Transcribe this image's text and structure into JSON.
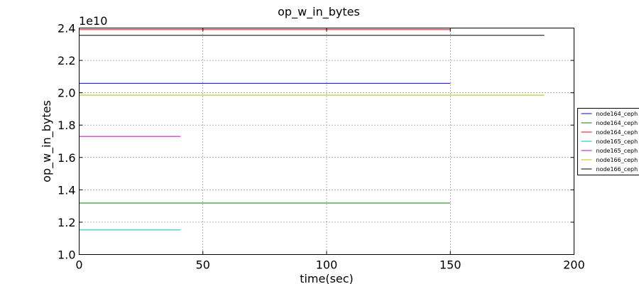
{
  "chart_data": {
    "type": "line",
    "title": "op_w_in_bytes",
    "xlabel": "time(sec)",
    "ylabel": "op_w_in_bytes",
    "y_multiplier_label": "1e10",
    "xlim": [
      0,
      200
    ],
    "ylim": [
      1.0,
      2.4
    ],
    "xticks": [
      0,
      50,
      100,
      150,
      200
    ],
    "yticks": [
      1.0,
      1.2,
      1.4,
      1.6,
      1.8,
      2.0,
      2.2,
      2.4
    ],
    "xtick_labels": [
      "0",
      "50",
      "100",
      "150",
      "200"
    ],
    "ytick_labels": [
      "1.0",
      "1.2",
      "1.4",
      "1.6",
      "1.8",
      "2.0",
      "2.2",
      "2.4"
    ],
    "grid": true,
    "legend_position": "right",
    "series": [
      {
        "name": "node164_ceph",
        "color": "#0000ff",
        "x": [
          0,
          150
        ],
        "y": [
          2.058,
          2.058
        ]
      },
      {
        "name": "node164_ceph",
        "color": "#008000",
        "x": [
          0,
          150
        ],
        "y": [
          1.318,
          1.318
        ]
      },
      {
        "name": "node164_ceph",
        "color": "#ff0000",
        "x": [
          0,
          150
        ],
        "y": [
          2.39,
          2.39
        ]
      },
      {
        "name": "node165_ceph",
        "color": "#00bfbf",
        "x": [
          0,
          41
        ],
        "y": [
          1.152,
          1.152
        ]
      },
      {
        "name": "node165_ceph",
        "color": "#bf00bf",
        "x": [
          0,
          41
        ],
        "y": [
          1.73,
          1.73
        ]
      },
      {
        "name": "node166_ceph",
        "color": "#bfbf00",
        "x": [
          0,
          188
        ],
        "y": [
          1.985,
          1.985
        ]
      },
      {
        "name": "node166_ceph",
        "color": "#000000",
        "x": [
          0,
          188
        ],
        "y": [
          2.355,
          2.355
        ]
      }
    ]
  }
}
